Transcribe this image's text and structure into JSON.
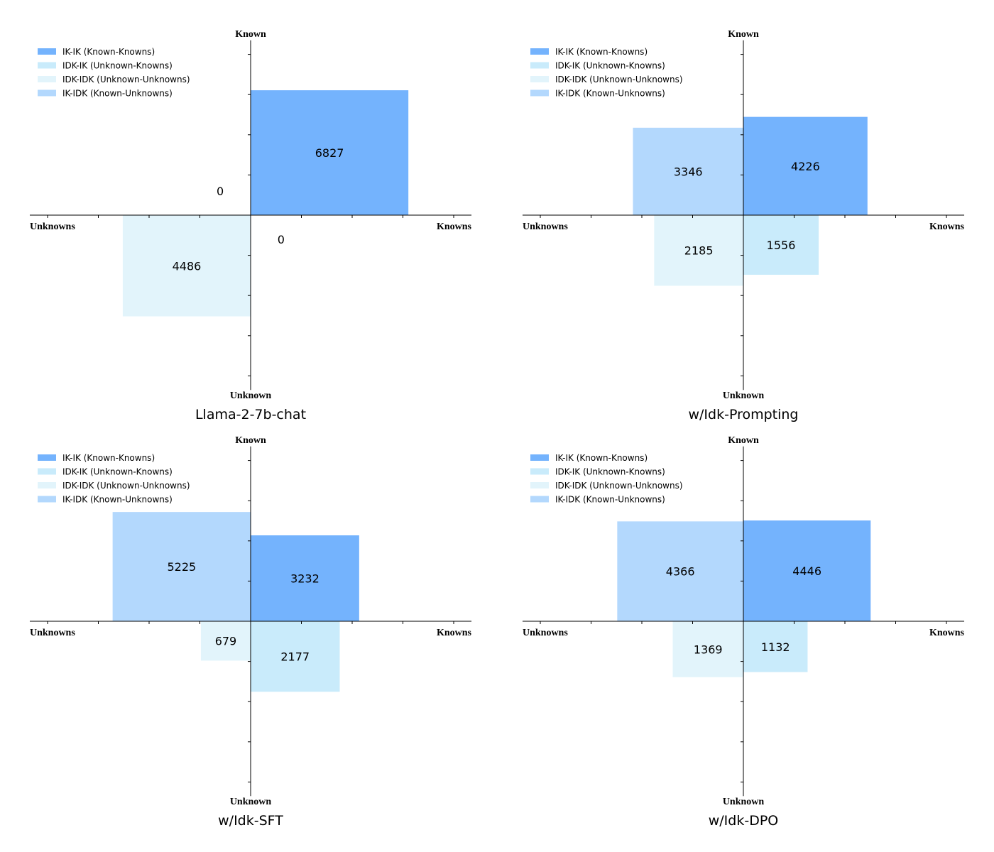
{
  "chart_data": [
    {
      "type": "bar",
      "subtype": "quadrant-squares",
      "title": "Llama-2-7b-chat",
      "values": {
        "IK-IK": 6827,
        "IDK-IK": 0,
        "IDK-IDK": 4486,
        "IK-IDK": 0
      }
    },
    {
      "type": "bar",
      "subtype": "quadrant-squares",
      "title": "w/Idk-Prompting",
      "values": {
        "IK-IK": 4226,
        "IDK-IK": 1556,
        "IDK-IDK": 2185,
        "IK-IDK": 3346
      }
    },
    {
      "type": "bar",
      "subtype": "quadrant-squares",
      "title": "w/Idk-SFT",
      "values": {
        "IK-IK": 3232,
        "IDK-IK": 2177,
        "IDK-IDK": 679,
        "IK-IDK": 5225
      }
    },
    {
      "type": "bar",
      "subtype": "quadrant-squares",
      "title": "w/Idk-DPO",
      "values": {
        "IK-IK": 4446,
        "IDK-IK": 1132,
        "IDK-IDK": 1369,
        "IK-IDK": 4366
      }
    }
  ],
  "axis_labels": {
    "top": "Known",
    "bottom": "Unknown",
    "left": "Unknowns",
    "right": "Knowns"
  },
  "xlim": [
    -4.35,
    4.35
  ],
  "ylim": [
    -4.35,
    4.35
  ],
  "legend": {
    "placement": "top-left",
    "entries": [
      {
        "key": "IK-IK",
        "label": "IK-IK (Known-Knowns)",
        "color": "#74b3fd"
      },
      {
        "key": "IDK-IK",
        "label": "IDK-IK (Unknown-Knowns)",
        "color": "#c9ebfb"
      },
      {
        "key": "IDK-IDK",
        "label": "IDK-IDK (Unknown-Unknowns)",
        "color": "#e2f4fb"
      },
      {
        "key": "IK-IDK",
        "label": "IK-IDK (Known-Unknowns)",
        "color": "#b3d8fd"
      }
    ]
  }
}
